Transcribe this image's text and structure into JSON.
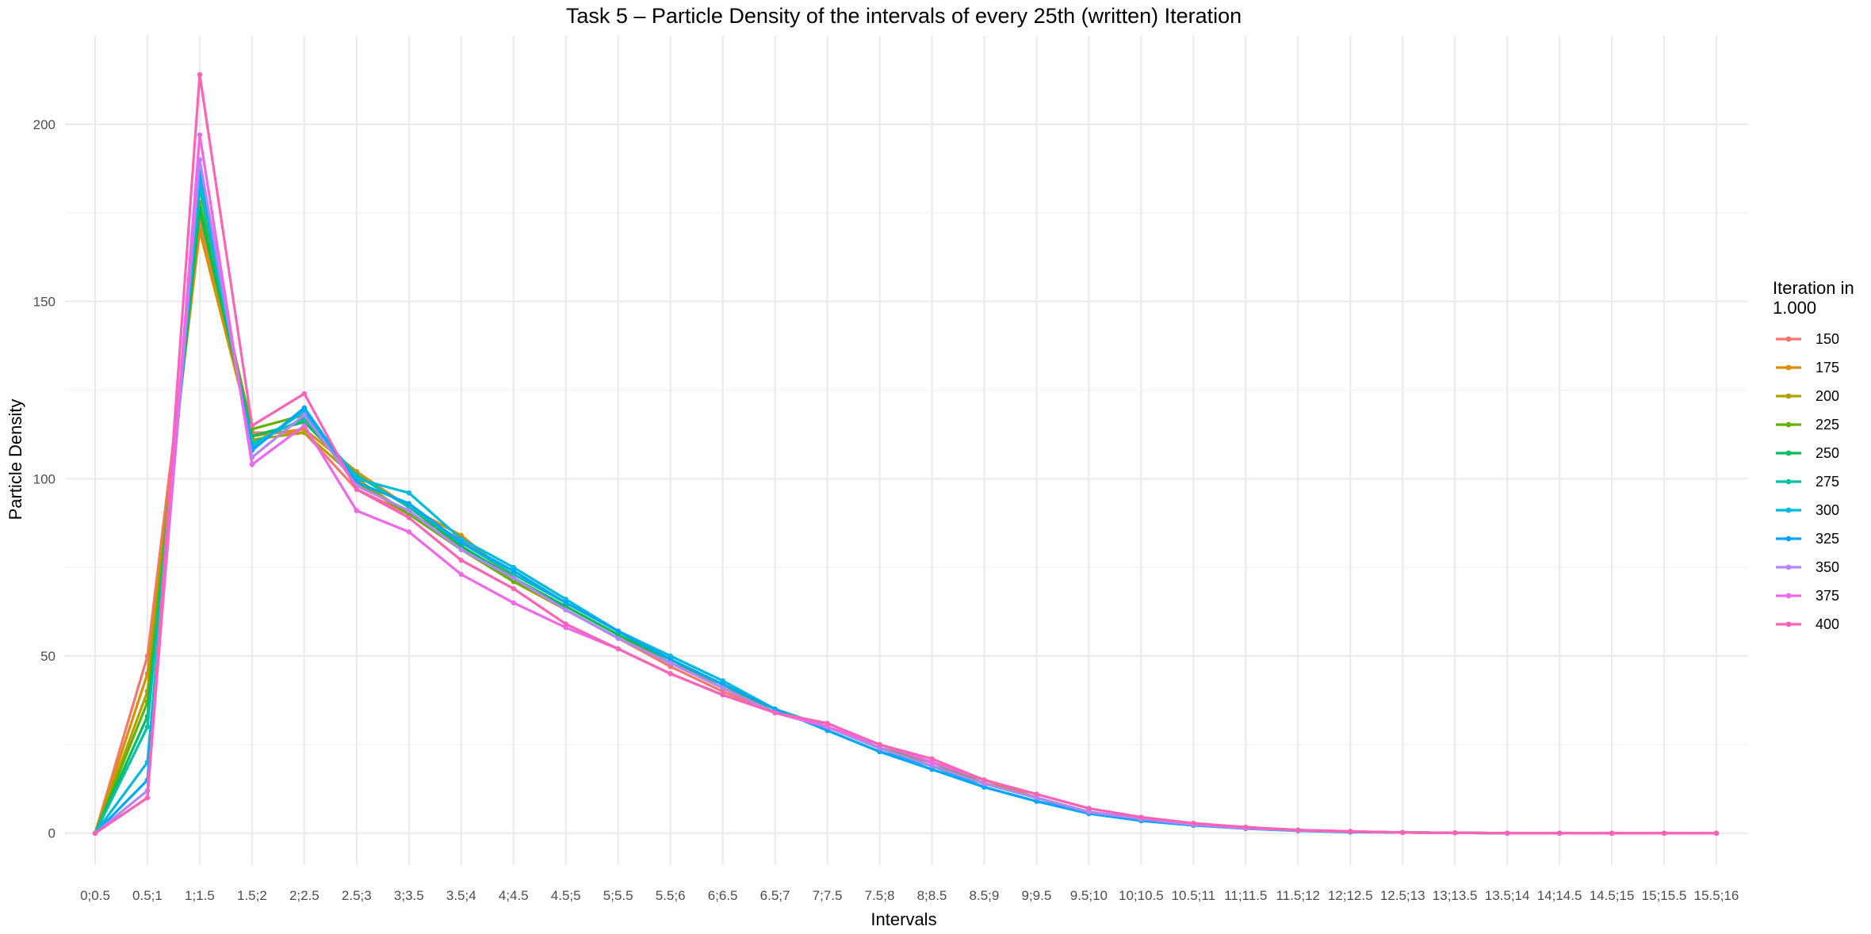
{
  "chart_data": {
    "type": "line",
    "title": "Task 5 – Particle Density of the intervals of every 25th (written) Iteration",
    "xlabel": "Intervals",
    "ylabel": "Particle Density",
    "ylim": [
      -9,
      225
    ],
    "yticks": [
      0,
      50,
      100,
      150,
      200
    ],
    "grid": true,
    "legend_position": "right",
    "legend_title_lines": [
      "Iteration in",
      "1.000"
    ],
    "categories": [
      "0;0.5",
      "0.5;1",
      "1;1.5",
      "1.5;2",
      "2;2.5",
      "2.5;3",
      "3;3.5",
      "3.5;4",
      "4;4.5",
      "4.5;5",
      "5;5.5",
      "5.5;6",
      "6;6.5",
      "6.5;7",
      "7;7.5",
      "7.5;8",
      "8;8.5",
      "8.5;9",
      "9;9.5",
      "9.5;10",
      "10;10.5",
      "10.5;11",
      "11;11.5",
      "11.5;12",
      "12;12.5",
      "12.5;13",
      "13;13.5",
      "13.5;14",
      "14;14.5",
      "14.5;15",
      "15;15.5",
      "15.5;16"
    ],
    "series": [
      {
        "name": "150",
        "color": "#F8766D",
        "values": [
          0,
          50,
          172,
          113,
          113,
          97,
          90,
          83,
          72,
          63,
          55,
          47,
          40,
          34,
          30,
          24,
          20,
          15,
          10,
          6,
          4,
          2.5,
          1.5,
          0.8,
          0.4,
          0.2,
          0.1,
          0,
          0,
          0,
          0,
          0
        ]
      },
      {
        "name": "175",
        "color": "#DB8E00",
        "values": [
          0,
          45,
          170,
          112,
          114,
          102,
          92,
          84,
          72,
          63,
          55,
          48,
          41,
          34,
          30,
          24,
          20,
          15,
          10,
          6,
          4,
          2.5,
          1.5,
          0.8,
          0.4,
          0.2,
          0.1,
          0,
          0,
          0,
          0,
          0
        ]
      },
      {
        "name": "200",
        "color": "#AEA200",
        "values": [
          0,
          40,
          175,
          111,
          113,
          100,
          90,
          81,
          71,
          63,
          55,
          48,
          41,
          34,
          30,
          24,
          20,
          14,
          10,
          6,
          4,
          2.5,
          1.5,
          0.8,
          0.4,
          0.2,
          0.1,
          0,
          0,
          0,
          0,
          0
        ]
      },
      {
        "name": "225",
        "color": "#64B200",
        "values": [
          0,
          37,
          178,
          114,
          118,
          99,
          90,
          80,
          71,
          64,
          56,
          48,
          42,
          34,
          30,
          24,
          20,
          14,
          10,
          6,
          4,
          2.5,
          1.5,
          0.8,
          0.4,
          0.2,
          0.1,
          0,
          0,
          0,
          0,
          0
        ]
      },
      {
        "name": "250",
        "color": "#00BD5C",
        "values": [
          0,
          33,
          176,
          112,
          116,
          101,
          92,
          81,
          72,
          64,
          56,
          49,
          42,
          35,
          30,
          24,
          19,
          14,
          10,
          6,
          4,
          2.5,
          1.5,
          0.8,
          0.4,
          0.2,
          0.1,
          0,
          0,
          0,
          0,
          0
        ]
      },
      {
        "name": "275",
        "color": "#00C1A7",
        "values": [
          0,
          30,
          182,
          110,
          117,
          101,
          92,
          82,
          73,
          65,
          57,
          49,
          42,
          35,
          30,
          24,
          19,
          14,
          10,
          6,
          4,
          2.4,
          1.4,
          0.8,
          0.4,
          0.2,
          0.1,
          0,
          0,
          0,
          0,
          0
        ]
      },
      {
        "name": "300",
        "color": "#00BADE",
        "values": [
          0,
          20,
          185,
          109,
          119,
          100,
          96,
          83,
          75,
          66,
          57,
          50,
          43,
          35,
          29,
          23,
          19,
          13,
          9,
          6,
          4,
          2.3,
          1.3,
          0.7,
          0.4,
          0.2,
          0.1,
          0,
          0,
          0,
          0,
          0
        ]
      },
      {
        "name": "325",
        "color": "#00A6FF",
        "values": [
          0,
          15,
          188,
          108,
          120,
          99,
          93,
          82,
          74,
          65,
          57,
          49,
          42,
          35,
          29,
          23,
          18,
          13,
          9,
          5.5,
          3.5,
          2.2,
          1.3,
          0.7,
          0.3,
          0.2,
          0.1,
          0,
          0,
          0,
          0,
          0
        ]
      },
      {
        "name": "350",
        "color": "#B385FF",
        "values": [
          0,
          12,
          190,
          106,
          118,
          98,
          91,
          80,
          72,
          63,
          55,
          48,
          41,
          34,
          30,
          24,
          19,
          14,
          10,
          6,
          4,
          2.4,
          1.4,
          0.8,
          0.4,
          0.2,
          0.1,
          0,
          0,
          0,
          0,
          0
        ]
      },
      {
        "name": "375",
        "color": "#EF67EB",
        "values": [
          0,
          10,
          197,
          104,
          115,
          91,
          85,
          73,
          65,
          58,
          52,
          45,
          39,
          34,
          30,
          25,
          20,
          15,
          11,
          7,
          4.5,
          2.8,
          1.6,
          0.9,
          0.5,
          0.2,
          0.1,
          0,
          0,
          0,
          0,
          0
        ]
      },
      {
        "name": "400",
        "color": "#FF63B6",
        "values": [
          0,
          10,
          214,
          115,
          124,
          97,
          89,
          77,
          69,
          59,
          52,
          45,
          39,
          34,
          31,
          25,
          21,
          15,
          11,
          7,
          4.5,
          2.8,
          1.7,
          0.9,
          0.5,
          0.2,
          0.1,
          0,
          0,
          0,
          0,
          0
        ]
      }
    ]
  }
}
